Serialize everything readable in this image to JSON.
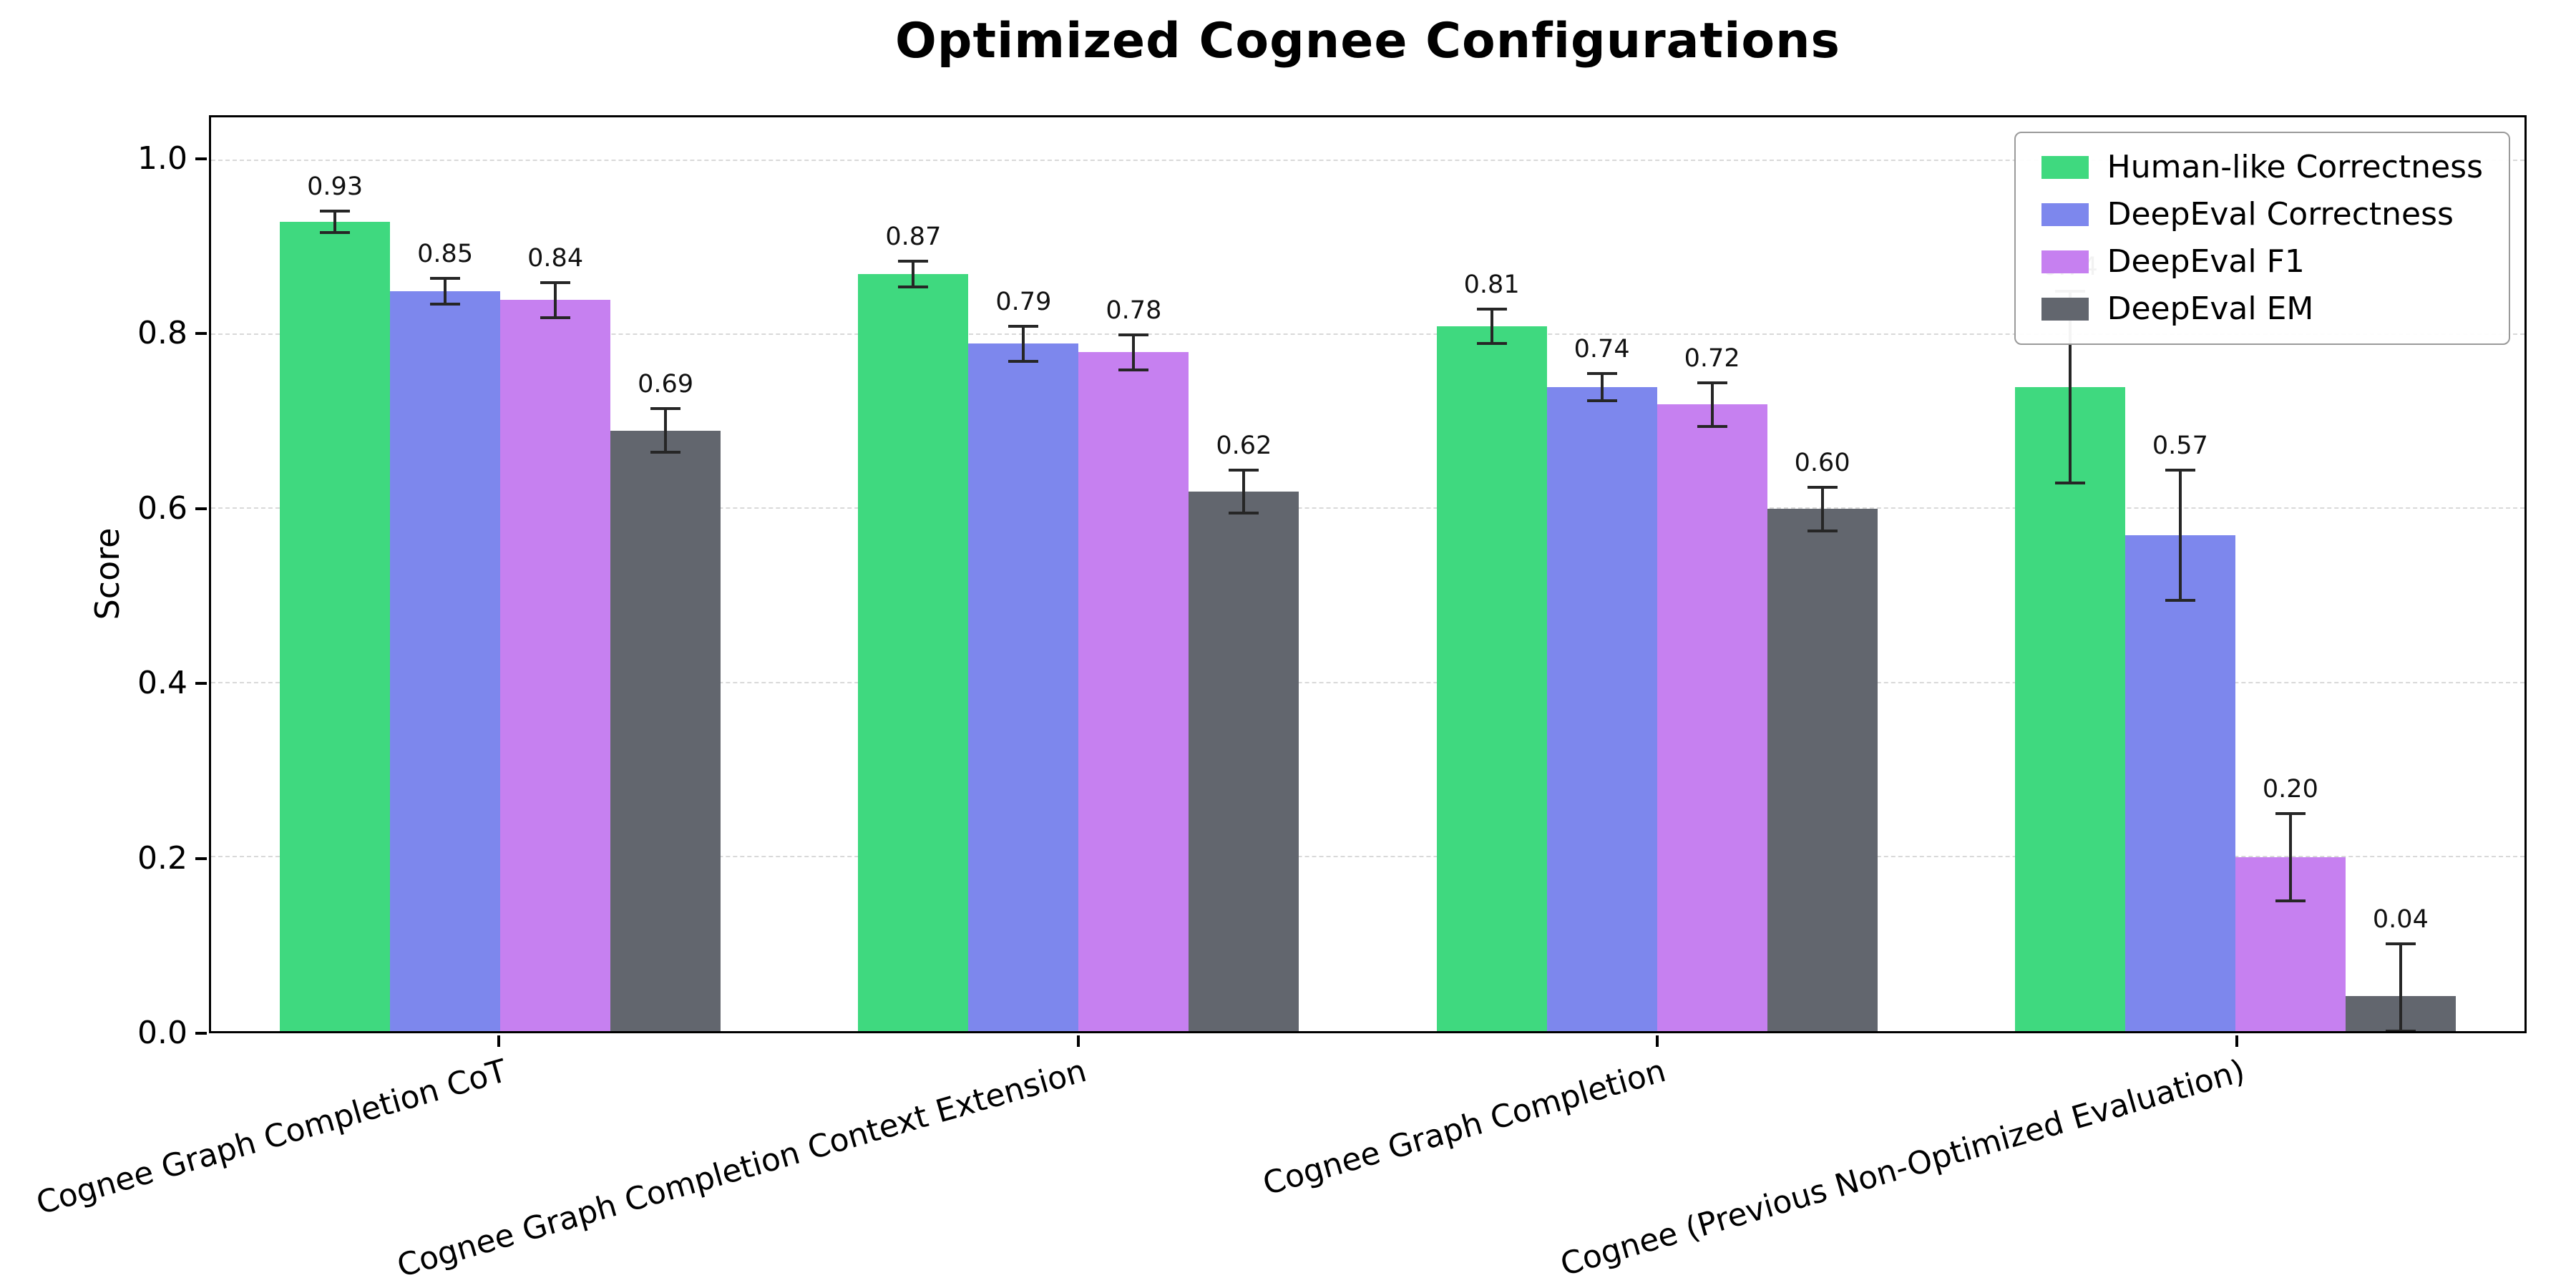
{
  "chart_data": {
    "type": "bar",
    "title": "Optimized Cognee Configurations",
    "ylabel": "Score",
    "ylim": [
      0,
      1.05
    ],
    "yticks": [
      0.0,
      0.2,
      0.4,
      0.6,
      0.8,
      1.0
    ],
    "grid": "horizontal-dashed",
    "legend_position": "upper-right",
    "error_bar_color": "#262626",
    "categories": [
      "Cognee Graph Completion CoT",
      "Cognee Graph Completion Context Extension",
      "Cognee Graph Completion",
      "Cognee (Previous Non-Optimized Evaluation)"
    ],
    "series": [
      {
        "name": "Human-like Correctness",
        "color": "#3fd97f",
        "values": [
          0.93,
          0.87,
          0.81,
          0.74
        ],
        "errors": [
          0.012,
          0.015,
          0.02,
          0.11
        ]
      },
      {
        "name": "DeepEval Correctness",
        "color": "#7d87ed",
        "values": [
          0.85,
          0.79,
          0.74,
          0.57
        ],
        "errors": [
          0.015,
          0.02,
          0.016,
          0.075
        ]
      },
      {
        "name": "DeepEval F1",
        "color": "#c680f0",
        "values": [
          0.84,
          0.78,
          0.72,
          0.2
        ],
        "errors": [
          0.02,
          0.02,
          0.025,
          0.05
        ]
      },
      {
        "name": "DeepEval EM",
        "color": "#62666e",
        "values": [
          0.69,
          0.62,
          0.6,
          0.04
        ],
        "errors": [
          0.025,
          0.025,
          0.025,
          0.06
        ]
      }
    ]
  }
}
